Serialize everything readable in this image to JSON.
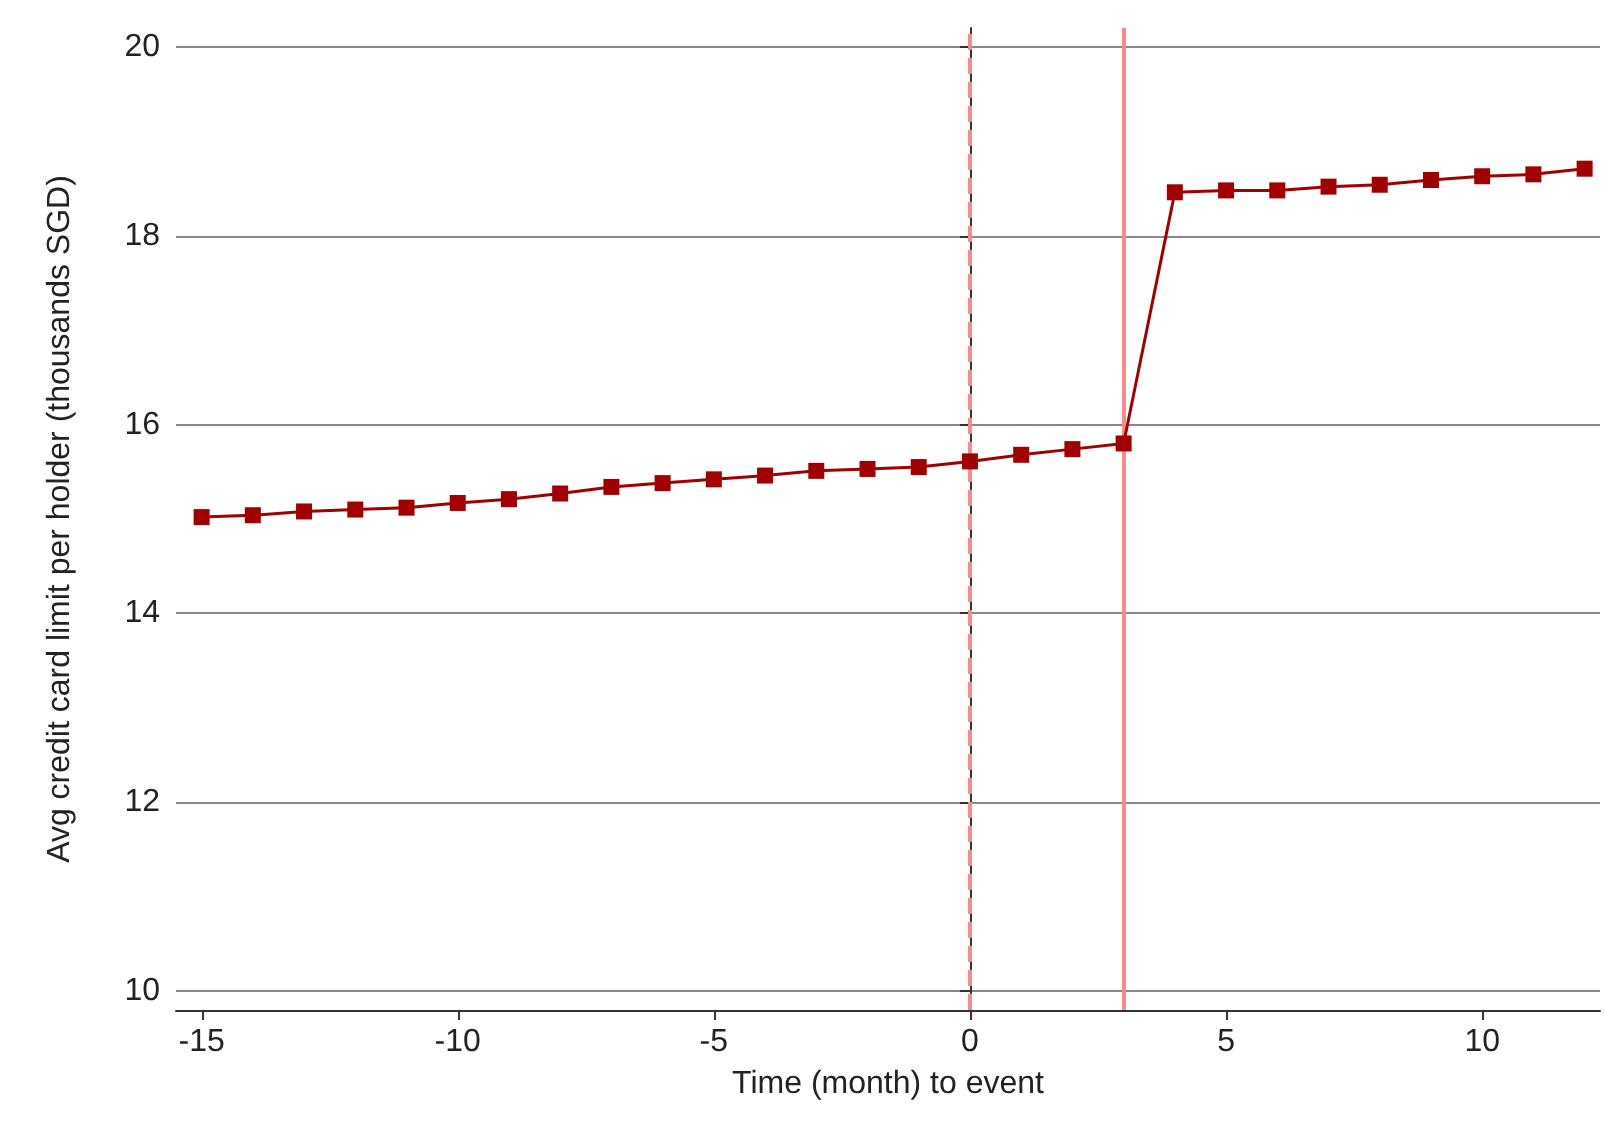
{
  "chart_data": {
    "type": "line",
    "xlabel": "Time (month) to event",
    "ylabel": "Avg credit card limit per holder (thousands SGD)",
    "x": [
      -15,
      -14,
      -13,
      -12,
      -11,
      -10,
      -9,
      -8,
      -7,
      -6,
      -5,
      -4,
      -3,
      -2,
      -1,
      0,
      1,
      2,
      3,
      4,
      5,
      6,
      7,
      8,
      9,
      10,
      11,
      12
    ],
    "series": [
      {
        "color": "#a00000",
        "values": [
          15.02,
          15.04,
          15.08,
          15.1,
          15.12,
          15.17,
          15.21,
          15.27,
          15.34,
          15.38,
          15.42,
          15.46,
          15.51,
          15.53,
          15.55,
          15.61,
          15.68,
          15.74,
          15.8,
          18.46,
          18.48,
          18.48,
          18.52,
          18.54,
          18.59,
          18.63,
          18.65,
          18.71
        ]
      }
    ],
    "xlim": [
      -15.5,
      12.3
    ],
    "xticks": [
      -15,
      -10,
      -5,
      0,
      5,
      10
    ],
    "ylim": [
      9.8,
      20.2
    ],
    "yticks": [
      10,
      12,
      14,
      16,
      18,
      20
    ],
    "grid": "y",
    "marker": "square",
    "line_style": "solid",
    "ref_lines": [
      {
        "axis": "x",
        "value": 0,
        "color": "#f48c8c",
        "line_style": "dashed"
      },
      {
        "axis": "x",
        "value": 3,
        "color": "#f48c8c",
        "line_style": "solid"
      }
    ]
  }
}
